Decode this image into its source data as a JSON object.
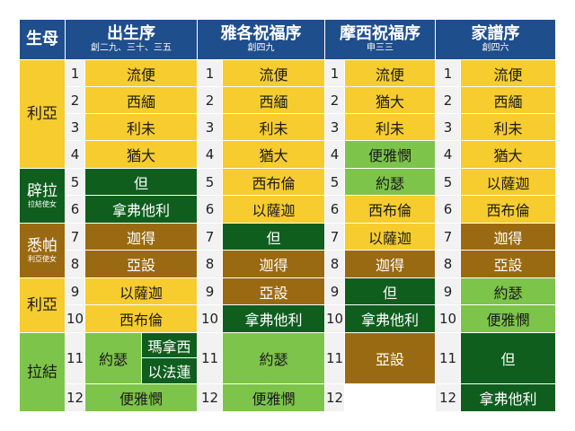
{
  "header": {
    "mother": "生母",
    "col1": {
      "title": "出生序",
      "sub": "創二九、三十、三五"
    },
    "col2": {
      "title": "雅各祝福序",
      "sub": "創四九"
    },
    "col3": {
      "title": "摩西祝福序",
      "sub": "申三三"
    },
    "col4": {
      "title": "家譜序",
      "sub": "創四六"
    }
  },
  "mothers": [
    {
      "name": "利亞",
      "sub": ""
    },
    {
      "name": "辟拉",
      "sub": "拉結使女"
    },
    {
      "name": "悉帕",
      "sub": "利亞使女"
    },
    {
      "name": "利亞",
      "sub": ""
    },
    {
      "name": "拉結",
      "sub": ""
    }
  ],
  "numbers": [
    "1",
    "2",
    "3",
    "4",
    "5",
    "6",
    "7",
    "8",
    "9",
    "10",
    "11",
    "12"
  ],
  "birth_order": {
    "r1": "流便",
    "r2": "西緬",
    "r3": "利未",
    "r4": "猶大",
    "r5": "但",
    "r6": "拿弗他利",
    "r7": "迦得",
    "r8": "亞設",
    "r9": "以薩迦",
    "r10": "西布倫",
    "r11": "約瑟",
    "r11a": "瑪拿西",
    "r11b": "以法蓮",
    "r12": "便雅憫"
  },
  "jacob_order": {
    "r1": "流便",
    "r2": "西緬",
    "r3": "利未",
    "r4": "猶大",
    "r5": "西布倫",
    "r6": "以薩迦",
    "r7": "但",
    "r8": "迦得",
    "r9": "亞設",
    "r10": "拿弗他利",
    "r11": "約瑟",
    "r12": "便雅憫"
  },
  "moses_order": {
    "r1": "流便",
    "r2": "猶大",
    "r3": "利未",
    "r4": "便雅憫",
    "r5": "約瑟",
    "r6": "西布倫",
    "r7": "以薩迦",
    "r8": "迦得",
    "r9": "但",
    "r10": "拿弗他利",
    "r11": "亞設"
  },
  "genealogy_order": {
    "r1": "流便",
    "r2": "西緬",
    "r3": "利未",
    "r4": "猶大",
    "r5": "以薩迦",
    "r6": "西布倫",
    "r7": "迦得",
    "r8": "亞設",
    "r9": "約瑟",
    "r10": "便雅憫",
    "r11": "但",
    "r12": "拿弗他利"
  },
  "colors": {
    "header": "#1f4e8c",
    "leah": "#f6cc2e",
    "bilhah": "#0f5e1e",
    "zilpah": "#9a6a12",
    "rachel": "#7dc44a"
  }
}
